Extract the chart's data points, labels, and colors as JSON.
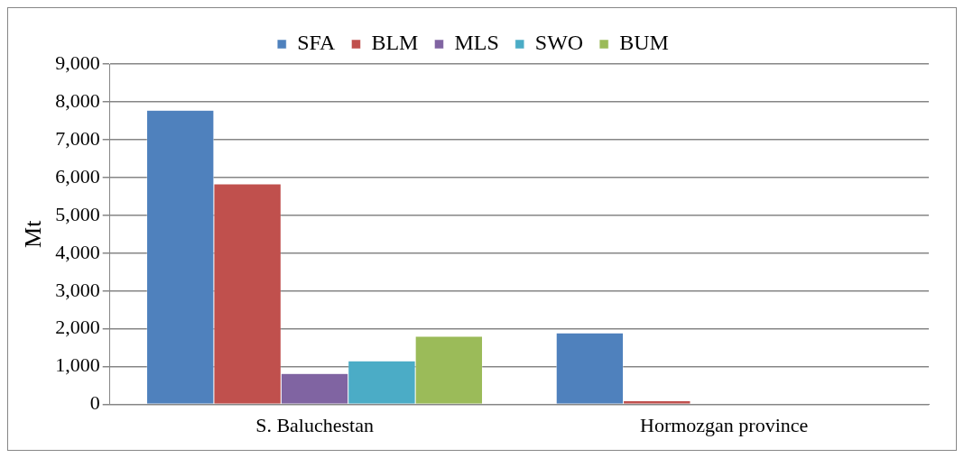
{
  "chart_data": {
    "type": "bar",
    "ylabel": "Mt",
    "categories": [
      "S. Baluchestan",
      "Hormozgan province"
    ],
    "series": [
      {
        "name": "SFA",
        "color": "#4f81bd",
        "values": [
          7780,
          1890
        ]
      },
      {
        "name": "BLM",
        "color": "#c0504d",
        "values": [
          5830,
          100
        ]
      },
      {
        "name": "MLS",
        "color": "#8064a2",
        "values": [
          820,
          0
        ]
      },
      {
        "name": "SWO",
        "color": "#4bacc6",
        "values": [
          1150,
          20
        ]
      },
      {
        "name": "BUM",
        "color": "#9bbb59",
        "values": [
          1800,
          0
        ]
      }
    ],
    "ylim": [
      0,
      9000
    ],
    "yticks": [
      {
        "value": 0,
        "label": "0"
      },
      {
        "value": 1000,
        "label": "1,000"
      },
      {
        "value": 2000,
        "label": "2,000"
      },
      {
        "value": 3000,
        "label": "3,000"
      },
      {
        "value": 4000,
        "label": "4,000"
      },
      {
        "value": 5000,
        "label": "5,000"
      },
      {
        "value": 6000,
        "label": "6,000"
      },
      {
        "value": 7000,
        "label": "7,000"
      },
      {
        "value": 8000,
        "label": "8,000"
      },
      {
        "value": 9000,
        "label": "9,000"
      }
    ],
    "grid": "y",
    "legend": "top"
  }
}
